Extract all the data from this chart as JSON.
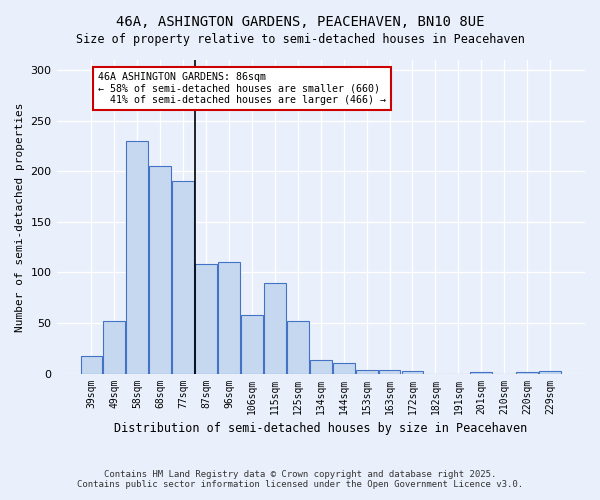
{
  "title1": "46A, ASHINGTON GARDENS, PEACEHAVEN, BN10 8UE",
  "title2": "Size of property relative to semi-detached houses in Peacehaven",
  "xlabel": "Distribution of semi-detached houses by size in Peacehaven",
  "ylabel": "Number of semi-detached properties",
  "footnote1": "Contains HM Land Registry data © Crown copyright and database right 2025.",
  "footnote2": "Contains public sector information licensed under the Open Government Licence v3.0.",
  "bins": [
    "39sqm",
    "49sqm",
    "58sqm",
    "68sqm",
    "77sqm",
    "87sqm",
    "96sqm",
    "106sqm",
    "115sqm",
    "125sqm",
    "134sqm",
    "144sqm",
    "153sqm",
    "163sqm",
    "172sqm",
    "182sqm",
    "191sqm",
    "201sqm",
    "210sqm",
    "220sqm",
    "229sqm"
  ],
  "values": [
    17,
    52,
    230,
    205,
    190,
    108,
    110,
    58,
    90,
    52,
    13,
    10,
    4,
    4,
    3,
    0,
    0,
    2,
    0,
    2,
    3
  ],
  "bar_color": "#c5d8f0",
  "bar_edge_color": "#4472c4",
  "subject_size": 86,
  "pct_smaller": 58,
  "count_smaller": 660,
  "pct_larger": 41,
  "count_larger": 466,
  "annotation_label": "46A ASHINGTON GARDENS: 86sqm",
  "annotation_box_color": "#ffffff",
  "annotation_box_edge": "#cc0000",
  "ylim": [
    0,
    310
  ],
  "background_color": "#eaf0fb"
}
